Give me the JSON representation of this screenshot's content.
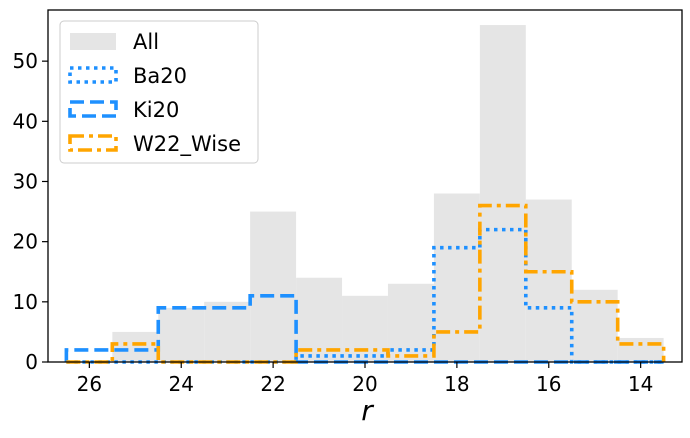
{
  "chart_data": {
    "type": "histogram",
    "xlabel": "r",
    "ylabel": "",
    "x_inverted": true,
    "xlim": [
      13.1,
      26.9
    ],
    "ylim": [
      0,
      58.5
    ],
    "x_ticks": [
      26,
      24,
      22,
      20,
      18,
      16,
      14
    ],
    "y_ticks": [
      0,
      10,
      20,
      30,
      40,
      50
    ],
    "bins": [
      [
        26.5,
        25.5
      ],
      [
        25.5,
        24.5
      ],
      [
        24.5,
        23.5
      ],
      [
        23.5,
        22.5
      ],
      [
        22.5,
        21.5
      ],
      [
        21.5,
        20.5
      ],
      [
        20.5,
        19.5
      ],
      [
        19.5,
        18.5
      ],
      [
        18.5,
        17.5
      ],
      [
        17.5,
        16.5
      ],
      [
        16.5,
        15.5
      ],
      [
        15.5,
        14.5
      ],
      [
        14.5,
        13.5
      ]
    ],
    "grid": false,
    "legend_position": "top-left",
    "series": [
      {
        "name": "All",
        "style": "filled",
        "color": "#e5e5e5",
        "values": [
          0,
          5,
          9,
          10,
          25,
          14,
          11,
          13,
          28,
          56,
          27,
          12,
          4
        ]
      },
      {
        "name": "Ba20",
        "style": "dotted",
        "color": "#1e90ff",
        "values": [
          0,
          0,
          0,
          0,
          0,
          1,
          1,
          2,
          19,
          22,
          9,
          0,
          0
        ]
      },
      {
        "name": "Ki20",
        "style": "dashed",
        "color": "#1e90ff",
        "values": [
          2,
          2,
          9,
          9,
          11,
          0,
          0,
          0,
          0,
          0,
          0,
          0,
          0
        ]
      },
      {
        "name": "W22_Wise",
        "style": "dashdot",
        "color": "#ffa500",
        "values": [
          0,
          3,
          0,
          0,
          0,
          2,
          2,
          1,
          5,
          26,
          15,
          10,
          3
        ]
      }
    ]
  }
}
